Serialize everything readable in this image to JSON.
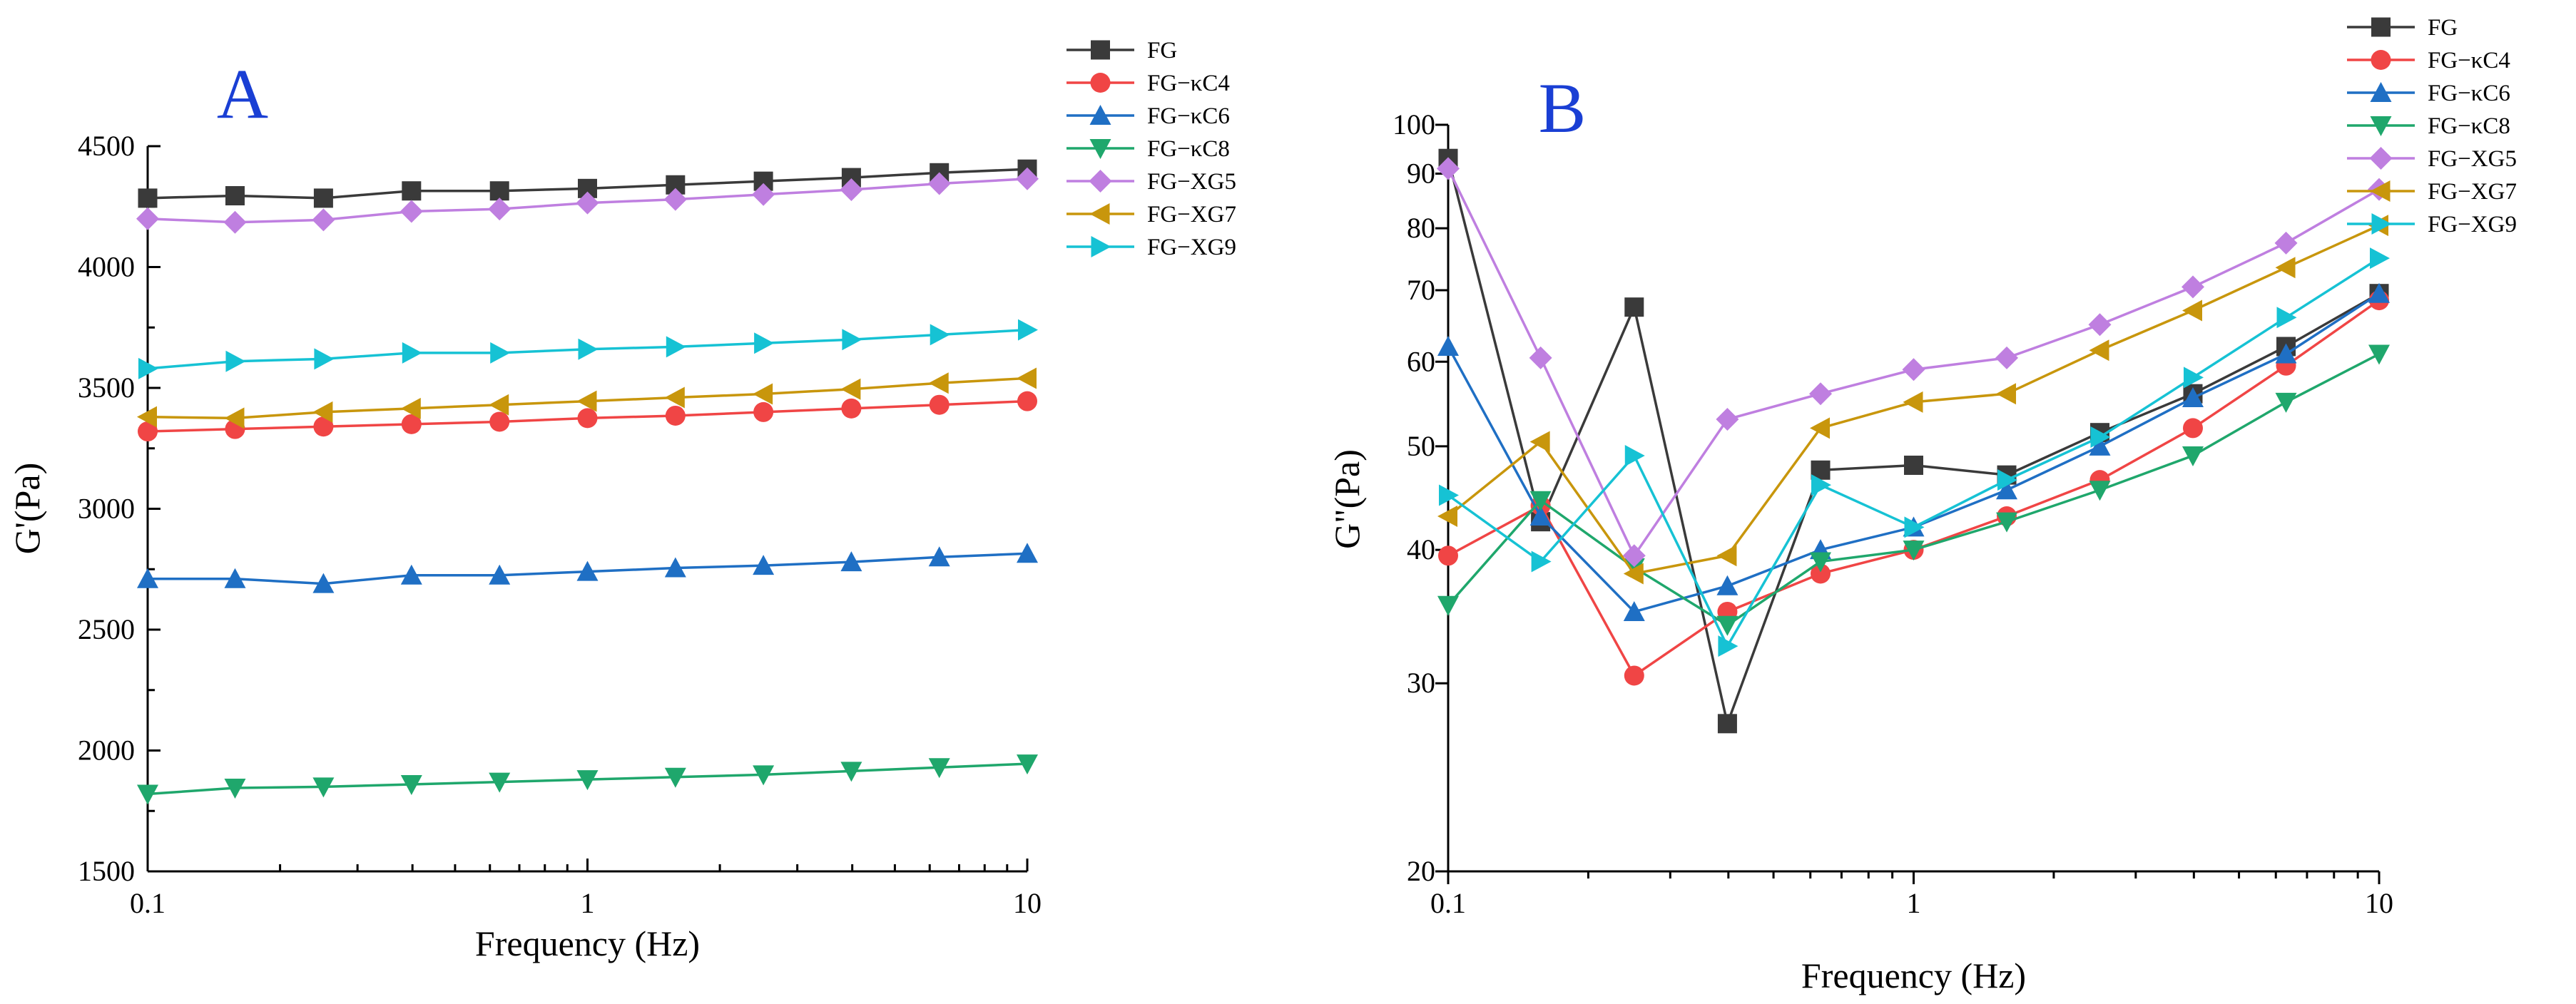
{
  "chart_data": [
    {
      "type": "line",
      "panel": "A",
      "xlabel": "Frequency (Hz)",
      "ylabel": "G'(Pa)",
      "xscale": "log",
      "xlim": [
        0.1,
        10
      ],
      "ylim": [
        1500,
        4500
      ],
      "xticks": [
        0.1,
        1,
        10
      ],
      "xtick_labels": [
        "0.1",
        "1",
        "10"
      ],
      "yticks": [
        1500,
        2000,
        2500,
        3000,
        3500,
        4000,
        4500
      ],
      "ytick_labels": [
        "1500",
        "2000",
        "2500",
        "3000",
        "3500",
        "4000",
        "4500"
      ],
      "legend_position": "top-right",
      "x": [
        0.1,
        0.158,
        0.251,
        0.398,
        0.631,
        1,
        1.585,
        2.512,
        3.981,
        6.31,
        10
      ],
      "series": [
        {
          "name": "FG",
          "color": "#3a3a3a",
          "marker": "square",
          "values": [
            4285,
            4295,
            4285,
            4315,
            4315,
            4325,
            4340,
            4355,
            4370,
            4390,
            4405
          ]
        },
        {
          "name": "FG−κC4",
          "color": "#f04545",
          "marker": "circle",
          "values": [
            3320,
            3330,
            3340,
            3350,
            3360,
            3375,
            3385,
            3400,
            3415,
            3430,
            3445
          ]
        },
        {
          "name": "FG−κC6",
          "color": "#1f6fc4",
          "marker": "triangle-up",
          "values": [
            2710,
            2710,
            2690,
            2725,
            2725,
            2740,
            2755,
            2765,
            2780,
            2800,
            2815
          ]
        },
        {
          "name": "FG−κC8",
          "color": "#1fa76c",
          "marker": "triangle-down",
          "values": [
            1820,
            1845,
            1850,
            1860,
            1870,
            1880,
            1890,
            1900,
            1915,
            1930,
            1945
          ]
        },
        {
          "name": "FG−XG5",
          "color": "#bf7fe0",
          "marker": "diamond",
          "values": [
            4200,
            4185,
            4195,
            4230,
            4240,
            4265,
            4280,
            4300,
            4320,
            4345,
            4365
          ]
        },
        {
          "name": "FG−XG7",
          "color": "#c8960c",
          "marker": "triangle-left",
          "values": [
            3380,
            3375,
            3400,
            3415,
            3430,
            3445,
            3460,
            3475,
            3495,
            3520,
            3540
          ]
        },
        {
          "name": "FG−XG9",
          "color": "#16c2d4",
          "marker": "triangle-right",
          "values": [
            3580,
            3610,
            3620,
            3645,
            3645,
            3660,
            3670,
            3685,
            3700,
            3720,
            3740
          ]
        }
      ]
    },
    {
      "type": "line",
      "panel": "B",
      "xlabel": "Frequency (Hz)",
      "ylabel": "G\"(Pa)",
      "xscale": "log",
      "yscale": "log",
      "xlim": [
        0.1,
        10
      ],
      "ylim": [
        20,
        100
      ],
      "xticks": [
        0.1,
        1,
        10
      ],
      "xtick_labels": [
        "0.1",
        "1",
        "10"
      ],
      "yticks": [
        20,
        30,
        40,
        50,
        60,
        70,
        80,
        90,
        100
      ],
      "ytick_labels": [
        "20",
        "30",
        "40",
        "50",
        "60",
        "70",
        "80",
        "90",
        "100"
      ],
      "legend_position": "top-right",
      "x": [
        0.1,
        0.158,
        0.251,
        0.398,
        0.631,
        1,
        1.585,
        2.512,
        3.981,
        6.31,
        10
      ],
      "series": [
        {
          "name": "FG",
          "color": "#3a3a3a",
          "marker": "square",
          "values": [
            93,
            42.5,
            67.5,
            27.5,
            47.5,
            48,
            47,
            51.5,
            56,
            62,
            69.5
          ]
        },
        {
          "name": "FG−κC4",
          "color": "#f04545",
          "marker": "circle",
          "values": [
            39.5,
            44,
            30.5,
            35,
            38,
            40,
            43,
            46.5,
            52,
            59.5,
            68.5
          ]
        },
        {
          "name": "FG−κC6",
          "color": "#1f6fc4",
          "marker": "triangle-up",
          "values": [
            62,
            43,
            35,
            37,
            40,
            42,
            45.5,
            50,
            55.5,
            61,
            69.5
          ]
        },
        {
          "name": "FG−κC8",
          "color": "#1fa76c",
          "marker": "triangle-down",
          "values": [
            35.5,
            44.5,
            38.5,
            34,
            39,
            40,
            42.5,
            45.5,
            49,
            55,
            61
          ]
        },
        {
          "name": "FG−XG5",
          "color": "#bf7fe0",
          "marker": "diamond",
          "values": [
            91,
            60.5,
            39.5,
            53,
            56,
            59,
            60.5,
            65,
            70.5,
            77.5,
            87
          ]
        },
        {
          "name": "FG−XG7",
          "color": "#c8960c",
          "marker": "triangle-left",
          "values": [
            43,
            50.5,
            38,
            39.5,
            52,
            55,
            56,
            61.5,
            67,
            73.5,
            80.5
          ]
        },
        {
          "name": "FG−XG9",
          "color": "#16c2d4",
          "marker": "triangle-right",
          "values": [
            45,
            39,
            49,
            32.5,
            46,
            42,
            46.5,
            51,
            58,
            66,
            75
          ]
        }
      ]
    }
  ],
  "panels": [
    {
      "label": "A",
      "color": "#1a3fd4"
    },
    {
      "label": "B",
      "color": "#1a3fd4"
    }
  ]
}
